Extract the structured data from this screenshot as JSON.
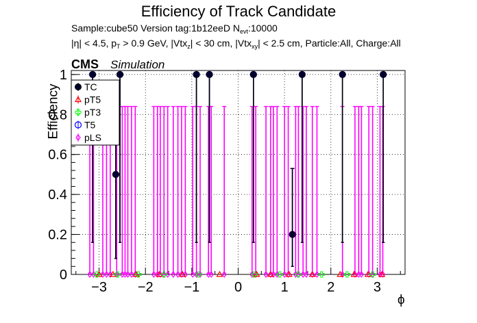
{
  "header": {
    "title": "Efficiency of Track Candidate",
    "line1": "Sample:cube50   Version tag:1b12eeD  N",
    "line1_sub": "evt",
    "line1_tail": ":10000",
    "line2": "|η| < 4.5, p",
    "line2_a": "T",
    "line2_b": " > 0.9 GeV, |Vtx",
    "line2_c": "z",
    "line2_d": "| < 30 cm, |Vtx",
    "line2_e": "xy",
    "line2_f": "| < 2.5 cm, Particle:All, Charge:All",
    "cms": "CMS",
    "simulation": "Simulation"
  },
  "chart_data": {
    "type": "scatter",
    "title": "Efficiency of Track Candidate",
    "xlabel": "ϕ",
    "ylabel": "Efficiency",
    "xlim": [
      -3.6,
      3.6
    ],
    "ylim": [
      0,
      1.02
    ],
    "xticks": [
      -3,
      -2,
      -1,
      0,
      1,
      2,
      3
    ],
    "xtick_labels": [
      "−3",
      "−2",
      "−1",
      "0",
      "1",
      "2",
      "3"
    ],
    "yticks": [
      0,
      0.2,
      0.4,
      0.6,
      0.8,
      1
    ],
    "ytick_labels": [
      "0",
      "0.2",
      "0.4",
      "0.6",
      "0.8",
      "1"
    ],
    "grid": true,
    "legend_position": "top-left",
    "series": [
      {
        "name": "TC",
        "color": "#000000",
        "marker": "filled-circle",
        "points": [
          {
            "x": -3.14,
            "y": 1.0,
            "lo": 0.16,
            "hi": 1.0
          },
          {
            "x": -2.64,
            "y": 0.5,
            "lo": 0.08,
            "hi": 0.92
          },
          {
            "x": -2.55,
            "y": 1.0,
            "lo": 0.16,
            "hi": 1.0
          },
          {
            "x": -0.9,
            "y": 1.0,
            "lo": 0.16,
            "hi": 1.0
          },
          {
            "x": -0.62,
            "y": 1.0,
            "lo": 0.16,
            "hi": 1.0
          },
          {
            "x": 0.33,
            "y": 1.0,
            "lo": 0.16,
            "hi": 1.0
          },
          {
            "x": 1.17,
            "y": 0.2,
            "lo": 0.04,
            "hi": 0.53
          },
          {
            "x": 1.38,
            "y": 1.0,
            "lo": 0.16,
            "hi": 1.0
          },
          {
            "x": 2.25,
            "y": 1.0,
            "lo": 0.16,
            "hi": 1.0
          },
          {
            "x": 3.13,
            "y": 1.0,
            "lo": 0.16,
            "hi": 1.0
          }
        ]
      },
      {
        "name": "pT5",
        "color": "#ff0000",
        "marker": "open-triangle",
        "points": [
          {
            "x": -3.0,
            "y": 0
          },
          {
            "x": -2.7,
            "y": 0
          },
          {
            "x": -2.2,
            "y": 0
          },
          {
            "x": -1.7,
            "y": 0
          },
          {
            "x": -1.2,
            "y": 0
          },
          {
            "x": -0.4,
            "y": 0
          },
          {
            "x": 0.4,
            "y": 0
          },
          {
            "x": 0.7,
            "y": 0
          },
          {
            "x": 1.1,
            "y": 0
          },
          {
            "x": 1.6,
            "y": 0
          },
          {
            "x": 2.2,
            "y": 0
          },
          {
            "x": 2.5,
            "y": 0
          },
          {
            "x": 2.8,
            "y": 0
          },
          {
            "x": 3.1,
            "y": 0
          }
        ]
      },
      {
        "name": "pT3",
        "color": "#00ff00",
        "marker": "open-cross",
        "points": [
          {
            "x": -3.05,
            "y": 0
          },
          {
            "x": -2.6,
            "y": 0
          },
          {
            "x": -2.15,
            "y": 0
          },
          {
            "x": -1.6,
            "y": 0
          },
          {
            "x": -0.85,
            "y": 0
          },
          {
            "x": 0.35,
            "y": 0
          },
          {
            "x": 0.9,
            "y": 0
          },
          {
            "x": 1.3,
            "y": 0
          },
          {
            "x": 1.8,
            "y": 0
          },
          {
            "x": 2.35,
            "y": 0
          },
          {
            "x": 2.9,
            "y": 0
          }
        ]
      },
      {
        "name": "T5",
        "color": "#0000ff",
        "marker": "open-circle",
        "points": [
          {
            "x": -3.14,
            "y": 1.0,
            "lo": 0.16,
            "hi": 1.0
          },
          {
            "x": -2.64,
            "y": 0.5,
            "lo": 0.08,
            "hi": 0.92
          },
          {
            "x": -2.55,
            "y": 1.0,
            "lo": 0.16,
            "hi": 1.0
          },
          {
            "x": -0.9,
            "y": 1.0,
            "lo": 0.16,
            "hi": 1.0
          },
          {
            "x": -0.62,
            "y": 1.0,
            "lo": 0.16,
            "hi": 1.0
          },
          {
            "x": 0.33,
            "y": 1.0,
            "lo": 0.16,
            "hi": 1.0
          },
          {
            "x": 1.17,
            "y": 0.2,
            "lo": 0.04,
            "hi": 0.53
          },
          {
            "x": 1.38,
            "y": 1.0,
            "lo": 0.16,
            "hi": 1.0
          },
          {
            "x": 2.25,
            "y": 1.0,
            "lo": 0.16,
            "hi": 1.0
          },
          {
            "x": 3.13,
            "y": 1.0,
            "lo": 0.16,
            "hi": 1.0
          }
        ]
      },
      {
        "name": "pLS",
        "color": "#ff00ff",
        "marker": "open-diamond",
        "points": [
          {
            "x": -3.2,
            "y": 0,
            "hi": 0.84
          },
          {
            "x": -3.12,
            "y": 0,
            "hi": 0.84
          },
          {
            "x": -2.92,
            "y": 0,
            "hi": 0.84
          },
          {
            "x": -2.84,
            "y": 0,
            "hi": 0.84
          },
          {
            "x": -2.76,
            "y": 0,
            "hi": 0.84
          },
          {
            "x": -2.62,
            "y": 0,
            "hi": 0.84
          },
          {
            "x": -2.5,
            "y": 0,
            "hi": 0.84
          },
          {
            "x": -2.44,
            "y": 0,
            "hi": 0.84
          },
          {
            "x": -2.38,
            "y": 0,
            "hi": 0.84
          },
          {
            "x": -2.3,
            "y": 0,
            "hi": 0.84
          },
          {
            "x": -2.22,
            "y": 0,
            "hi": 0.84
          },
          {
            "x": -1.82,
            "y": 0,
            "hi": 0.84
          },
          {
            "x": -1.74,
            "y": 0,
            "hi": 0.84
          },
          {
            "x": -1.68,
            "y": 0,
            "hi": 0.84
          },
          {
            "x": -1.6,
            "y": 0,
            "hi": 0.84
          },
          {
            "x": -1.52,
            "y": 0,
            "hi": 0.84
          },
          {
            "x": -1.4,
            "y": 0,
            "hi": 0.84
          },
          {
            "x": -1.3,
            "y": 0,
            "hi": 0.84
          },
          {
            "x": -1.22,
            "y": 0,
            "hi": 0.84
          },
          {
            "x": -1.14,
            "y": 0,
            "hi": 0.84
          },
          {
            "x": -0.98,
            "y": 0,
            "hi": 0.84
          },
          {
            "x": -0.9,
            "y": 0,
            "hi": 0.84
          },
          {
            "x": -0.82,
            "y": 0,
            "hi": 0.84
          },
          {
            "x": -0.64,
            "y": 0,
            "hi": 0.84
          },
          {
            "x": -0.58,
            "y": 0,
            "hi": 0.84
          },
          {
            "x": -0.3,
            "y": 0,
            "hi": 0.84
          },
          {
            "x": 0.3,
            "y": 0,
            "hi": 0.84
          },
          {
            "x": 0.38,
            "y": 0,
            "hi": 0.84
          },
          {
            "x": 0.6,
            "y": 0,
            "hi": 0.84
          },
          {
            "x": 0.7,
            "y": 0,
            "hi": 0.84
          },
          {
            "x": 0.76,
            "y": 0,
            "hi": 0.84
          },
          {
            "x": 0.84,
            "y": 0,
            "hi": 0.84
          },
          {
            "x": 1.0,
            "y": 0,
            "hi": 0.84
          },
          {
            "x": 1.08,
            "y": 0,
            "hi": 0.84
          },
          {
            "x": 1.24,
            "y": 0,
            "hi": 0.84
          },
          {
            "x": 1.3,
            "y": 0,
            "hi": 0.84
          },
          {
            "x": 1.4,
            "y": 0,
            "hi": 0.84
          },
          {
            "x": 1.47,
            "y": 0,
            "hi": 0.84
          },
          {
            "x": 1.6,
            "y": 0,
            "hi": 0.84
          },
          {
            "x": 1.7,
            "y": 0,
            "hi": 0.84
          },
          {
            "x": 2.25,
            "y": 0,
            "hi": 0.84
          },
          {
            "x": 2.52,
            "y": 0,
            "hi": 0.84
          },
          {
            "x": 2.6,
            "y": 0,
            "hi": 0.84
          },
          {
            "x": 2.66,
            "y": 0,
            "hi": 0.84
          },
          {
            "x": 2.82,
            "y": 0,
            "hi": 0.84
          },
          {
            "x": 2.9,
            "y": 0,
            "hi": 0.84
          },
          {
            "x": 3.06,
            "y": 0,
            "hi": 0.84
          },
          {
            "x": 3.12,
            "y": 0,
            "hi": 0.84
          }
        ]
      }
    ]
  }
}
